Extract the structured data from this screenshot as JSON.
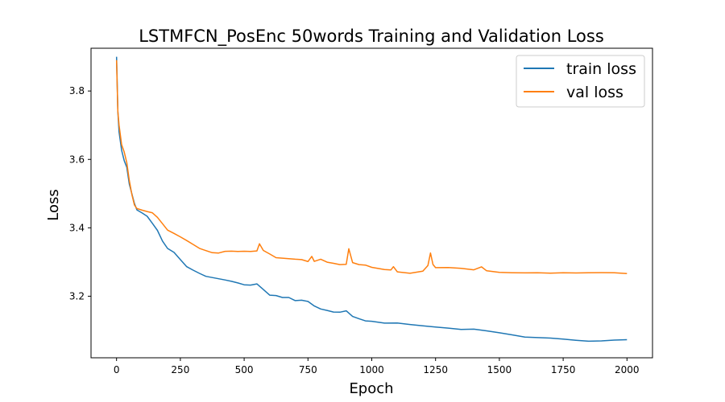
{
  "chart_data": {
    "type": "line",
    "title": "LSTMFCN_PosEnc 50words Training and Validation Loss",
    "xlabel": "Epoch",
    "ylabel": "Loss",
    "xlim": [
      -100,
      2100
    ],
    "ylim": [
      3.02,
      3.925
    ],
    "xticks": [
      0,
      250,
      500,
      750,
      1000,
      1250,
      1500,
      1750,
      2000
    ],
    "yticks": [
      3.2,
      3.4,
      3.6,
      3.8
    ],
    "grid": false,
    "legend_position": "upper right",
    "series": [
      {
        "name": "train loss",
        "color": "#1f77b4",
        "x": [
          0,
          5,
          10,
          20,
          30,
          40,
          50,
          60,
          70,
          80,
          100,
          120,
          140,
          160,
          180,
          200,
          225,
          250,
          275,
          300,
          325,
          350,
          375,
          400,
          425,
          450,
          475,
          500,
          525,
          550,
          575,
          600,
          625,
          650,
          675,
          700,
          725,
          750,
          775,
          800,
          825,
          850,
          875,
          900,
          925,
          950,
          975,
          1000,
          1050,
          1100,
          1150,
          1200,
          1250,
          1300,
          1350,
          1400,
          1450,
          1500,
          1550,
          1600,
          1650,
          1700,
          1750,
          1800,
          1850,
          1900,
          1950,
          2000
        ],
        "y": [
          3.9,
          3.74,
          3.68,
          3.63,
          3.6,
          3.58,
          3.53,
          3.5,
          3.47,
          3.45,
          3.44,
          3.43,
          3.41,
          3.39,
          3.36,
          3.34,
          3.33,
          3.31,
          3.29,
          3.28,
          3.27,
          3.26,
          3.255,
          3.25,
          3.245,
          3.24,
          3.235,
          3.23,
          3.23,
          3.235,
          3.22,
          3.205,
          3.205,
          3.2,
          3.2,
          3.19,
          3.19,
          3.185,
          3.17,
          3.16,
          3.155,
          3.15,
          3.15,
          3.155,
          3.14,
          3.135,
          3.13,
          3.13,
          3.125,
          3.125,
          3.12,
          3.115,
          3.11,
          3.105,
          3.1,
          3.1,
          3.095,
          3.09,
          3.085,
          3.08,
          3.08,
          3.08,
          3.078,
          3.075,
          3.072,
          3.072,
          3.073,
          3.073
        ]
      },
      {
        "name": "val loss",
        "color": "#ff7f0e",
        "x": [
          0,
          5,
          10,
          20,
          30,
          40,
          50,
          60,
          70,
          80,
          100,
          120,
          140,
          160,
          180,
          200,
          225,
          250,
          275,
          300,
          325,
          350,
          375,
          400,
          425,
          450,
          475,
          500,
          525,
          550,
          560,
          575,
          600,
          625,
          650,
          675,
          700,
          725,
          750,
          765,
          775,
          800,
          825,
          850,
          875,
          900,
          910,
          925,
          950,
          975,
          1000,
          1050,
          1075,
          1085,
          1100,
          1150,
          1200,
          1220,
          1230,
          1240,
          1250,
          1300,
          1350,
          1400,
          1430,
          1450,
          1500,
          1550,
          1600,
          1650,
          1700,
          1750,
          1800,
          1850,
          1900,
          1950,
          2000
        ],
        "y": [
          3.89,
          3.74,
          3.7,
          3.64,
          3.62,
          3.59,
          3.54,
          3.5,
          3.47,
          3.46,
          3.455,
          3.45,
          3.445,
          3.43,
          3.41,
          3.39,
          3.38,
          3.37,
          3.36,
          3.35,
          3.34,
          3.335,
          3.33,
          3.33,
          3.335,
          3.335,
          3.333,
          3.332,
          3.33,
          3.33,
          3.35,
          3.33,
          3.32,
          3.31,
          3.31,
          3.31,
          3.31,
          3.31,
          3.305,
          3.32,
          3.305,
          3.31,
          3.3,
          3.295,
          3.29,
          3.29,
          3.335,
          3.295,
          3.29,
          3.29,
          3.285,
          3.28,
          3.28,
          3.29,
          3.275,
          3.27,
          3.275,
          3.29,
          3.325,
          3.29,
          3.28,
          3.28,
          3.278,
          3.275,
          3.285,
          3.275,
          3.272,
          3.272,
          3.272,
          3.272,
          3.27,
          3.27,
          3.268,
          3.267,
          3.266,
          3.265,
          3.266
        ]
      }
    ]
  }
}
